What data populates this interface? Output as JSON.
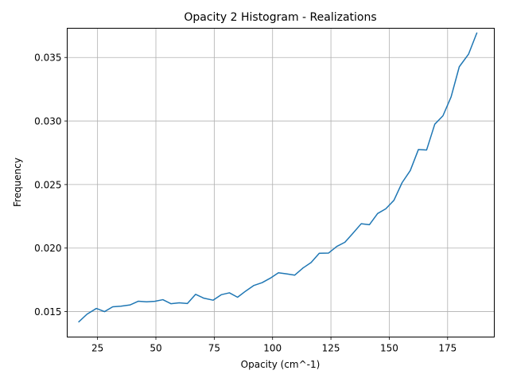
{
  "chart_data": {
    "type": "line",
    "title": "Opacity 2 Histogram - Realizations",
    "xlabel": "Opacity (cm^-1)",
    "ylabel": "Frequency",
    "xlim": [
      12,
      195
    ],
    "ylim": [
      0.013,
      0.0373
    ],
    "grid": true,
    "x_ticks": [
      25,
      50,
      75,
      100,
      125,
      150,
      175
    ],
    "x_tick_labels": [
      "25",
      "50",
      "75",
      "100",
      "125",
      "150",
      "175"
    ],
    "y_ticks": [
      0.015,
      0.02,
      0.025,
      0.03,
      0.035
    ],
    "y_tick_labels": [
      "0.015",
      "0.020",
      "0.025",
      "0.030",
      "0.035"
    ],
    "series": [
      {
        "color": "#1f77b4",
        "x": [
          17,
          20.5,
          24.5,
          28,
          31.5,
          35,
          39,
          42.5,
          46,
          49.5,
          53,
          56.5,
          60,
          63.5,
          67,
          70.5,
          74.5,
          78,
          81.5,
          85,
          88.5,
          92,
          95.5,
          99,
          102.5,
          106,
          109.5,
          113,
          116.5,
          120,
          124,
          127.5,
          131,
          134.5,
          138,
          141.5,
          145,
          148.5,
          152,
          155.5,
          159,
          162.5,
          166,
          169.5,
          173,
          176.5,
          180,
          184,
          187.5
        ],
        "y": [
          0.0142,
          0.0148,
          0.01525,
          0.015,
          0.01538,
          0.01543,
          0.01553,
          0.01582,
          0.01577,
          0.01581,
          0.01594,
          0.01562,
          0.01569,
          0.01564,
          0.01636,
          0.01606,
          0.0159,
          0.01633,
          0.01648,
          0.01613,
          0.01662,
          0.01706,
          0.01728,
          0.01763,
          0.01806,
          0.01797,
          0.01787,
          0.01843,
          0.01886,
          0.01959,
          0.01961,
          0.02013,
          0.02046,
          0.02118,
          0.02192,
          0.02184,
          0.02272,
          0.02309,
          0.02376,
          0.02515,
          0.0261,
          0.02776,
          0.02772,
          0.02975,
          0.03041,
          0.0319,
          0.03427,
          0.03527,
          0.03692
        ]
      }
    ]
  }
}
